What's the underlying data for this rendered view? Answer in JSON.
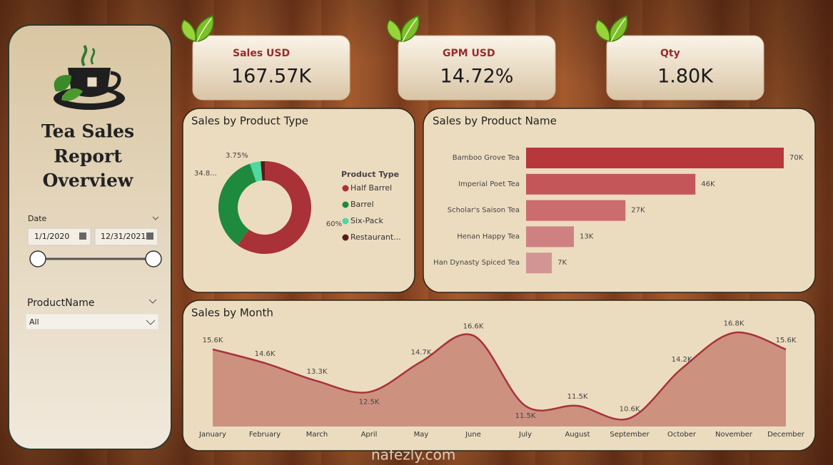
{
  "sidebar": {
    "title_lines": [
      "Tea Sales",
      "Report",
      "Overview"
    ],
    "date_slicer": {
      "label": "Date",
      "start": "1/1/2020",
      "end": "12/31/2021"
    },
    "product_slicer": {
      "label": "ProductName",
      "selected": "All"
    }
  },
  "kpis": [
    {
      "label": "Sales USD",
      "value": "167.57K"
    },
    {
      "label": "GPM USD",
      "value": "14.72%"
    },
    {
      "label": "Qty",
      "value": "1.80K"
    }
  ],
  "chart_data": [
    {
      "type": "pie",
      "donut": true,
      "title": "Sales by Product Type",
      "legend_title": "Product Type",
      "categories": [
        "Half Barrel",
        "Barrel",
        "Six-Pack",
        "Restaurant..."
      ],
      "values": [
        60,
        34.8,
        3.75,
        1.45
      ],
      "value_labels": [
        "60%",
        "34.8...",
        "3.75%",
        null
      ],
      "colors": [
        "#a83236",
        "#1e8a3e",
        "#4fd8a0",
        "#5a1a1a"
      ]
    },
    {
      "type": "bar",
      "orientation": "horizontal",
      "title": "Sales by Product Name",
      "categories": [
        "Bamboo Grove Tea",
        "Imperial Poet Tea",
        "Scholar's Saison Tea",
        "Henan Happy Tea",
        "Han Dynasty Spiced Tea"
      ],
      "values": [
        70000,
        46000,
        27000,
        13000,
        7000
      ],
      "value_labels": [
        "70K",
        "46K",
        "27K",
        "13K",
        "7K"
      ],
      "colors": [
        "#b6373c",
        "#c4565a",
        "#cb6c6f",
        "#cf8182",
        "#d39594"
      ]
    },
    {
      "type": "area",
      "title": "Sales by Month",
      "categories": [
        "January",
        "February",
        "March",
        "April",
        "May",
        "June",
        "July",
        "August",
        "September",
        "October",
        "November",
        "December"
      ],
      "values": [
        15600,
        14600,
        13300,
        12500,
        14700,
        16600,
        11500,
        11500,
        10600,
        14200,
        16800,
        15600
      ],
      "value_labels": [
        "15.6K",
        "14.6K",
        "13.3K",
        "12.5K",
        "14.7K",
        "16.6K",
        "11.5K",
        "11.5K",
        "10.6K",
        "14.2K",
        "16.8K",
        "15.6K"
      ],
      "ylim": [
        10000,
        17400
      ],
      "color": "#a8323a",
      "fill": "#cd9180"
    }
  ],
  "watermark": "nafezly.com"
}
